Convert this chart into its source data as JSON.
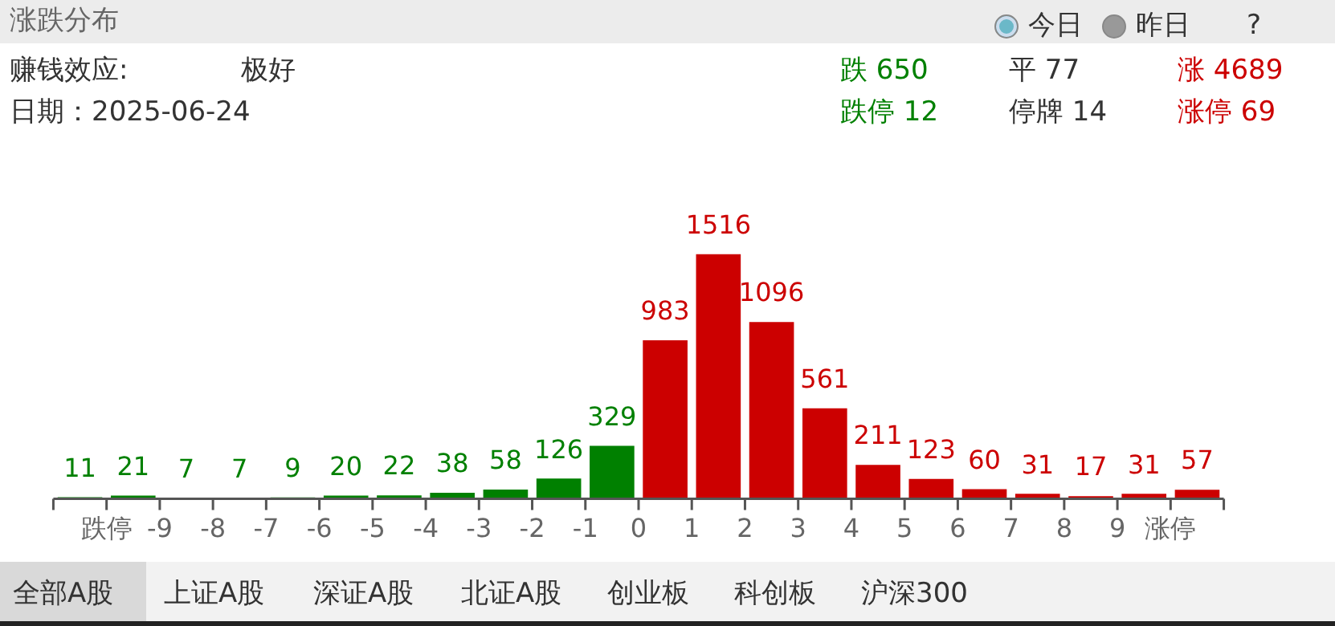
{
  "chart_data": {
    "type": "bar",
    "title": "涨跌分布",
    "x": [
      -10.5,
      -9.5,
      -8.5,
      -7.5,
      -6.5,
      -5.5,
      -4.5,
      -3.5,
      -2.5,
      -1.5,
      -0.5,
      0.5,
      1.5,
      2.5,
      3.5,
      4.5,
      5.5,
      6.5,
      7.5,
      8.5,
      9.5,
      10.5
    ],
    "values": [
      11,
      21,
      7,
      7,
      9,
      20,
      22,
      38,
      58,
      126,
      329,
      983,
      1516,
      1096,
      561,
      211,
      123,
      60,
      31,
      17,
      31,
      57
    ],
    "colors": [
      "#008000",
      "#008000",
      "#008000",
      "#008000",
      "#008000",
      "#008000",
      "#008000",
      "#008000",
      "#008000",
      "#008000",
      "#008000",
      "#cc0000",
      "#cc0000",
      "#cc0000",
      "#cc0000",
      "#cc0000",
      "#cc0000",
      "#cc0000",
      "#cc0000",
      "#cc0000",
      "#cc0000",
      "#cc0000"
    ],
    "xlim": [
      -11,
      11
    ],
    "xticks": [
      {
        "value": -10,
        "label": "跌停"
      },
      -9,
      -8,
      -7,
      -6,
      -5,
      -4,
      -3,
      -2,
      -1,
      0,
      1,
      2,
      3,
      4,
      5,
      6,
      7,
      8,
      9,
      {
        "value": 10,
        "label": "涨停"
      }
    ],
    "tick_labels": "x",
    "data_labels": true,
    "grid": false,
    "legend": false,
    "annotations": [
      "赚钱效应:",
      "极好",
      "日期：2025-06-24",
      "跌 650",
      "平 77",
      "涨 4689",
      "跌停 12",
      "停牌 14",
      "涨停 69",
      "今日",
      "昨日",
      "?",
      "全部A股",
      "上证A股",
      "深证A股",
      "北证A股",
      "创业板",
      "科创板",
      "沪深300"
    ]
  }
}
